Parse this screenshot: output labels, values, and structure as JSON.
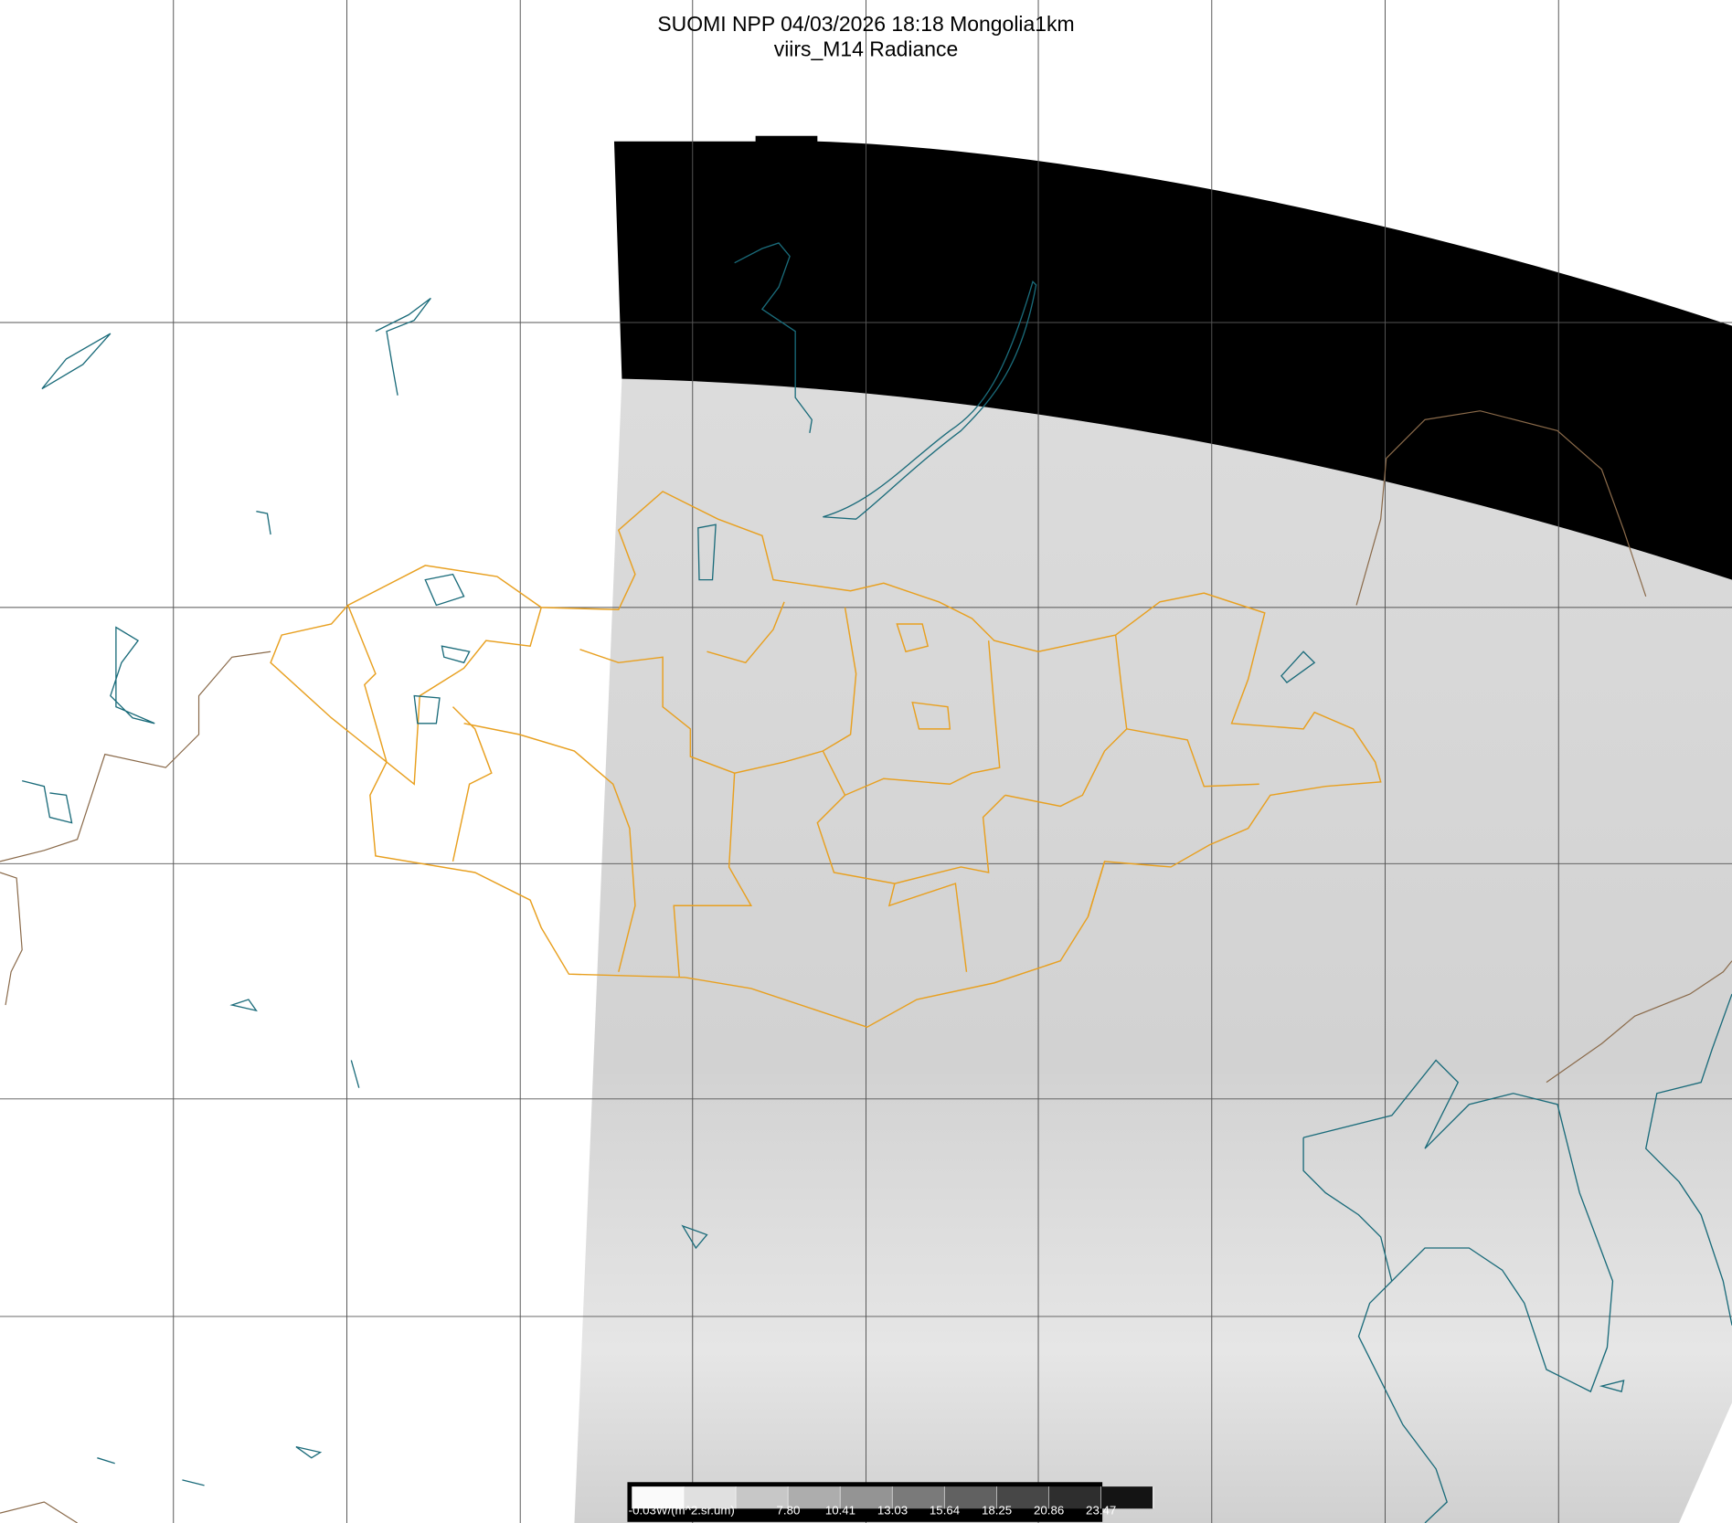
{
  "title": {
    "line1": "SUOMI NPP 04/03/2026 18:18 Mongolia1km",
    "line2": "viirs_M14 Radiance"
  },
  "colors": {
    "no_data_night": "#000000",
    "swath_gray": "#d8d8d8",
    "borders_mongolia": "#e8a020",
    "coastlines_lakes": "#1a6b7a",
    "country_borders": "#8a6a4a",
    "grid": "#555555"
  },
  "colorbar": {
    "unit_label": "-0.03W/(m^2.sr.um)",
    "ticks": [
      "7.80",
      "10.41",
      "13.03",
      "15.64",
      "18.25",
      "20.86",
      "23.47"
    ],
    "range": [
      -0.03,
      26.08
    ],
    "colormap": "grayscale white-to-black"
  }
}
